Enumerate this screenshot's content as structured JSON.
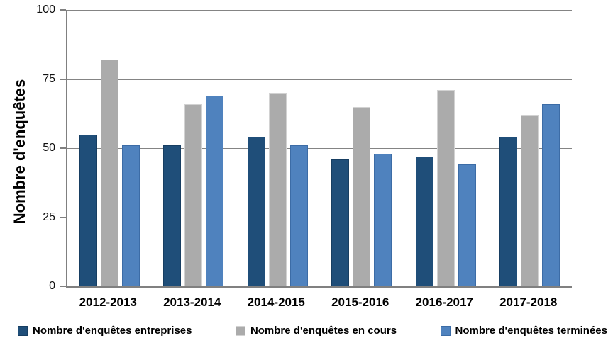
{
  "chart_data": {
    "type": "bar",
    "title": "",
    "xlabel": "",
    "ylabel": "Nombre d'enquêtes",
    "ylim": [
      0,
      100
    ],
    "yticks": [
      0,
      25,
      50,
      75,
      100
    ],
    "grid": true,
    "legend_position": "bottom",
    "categories": [
      "2012-2013",
      "2013-2014",
      "2014-2015",
      "2015-2016",
      "2016-2017",
      "2017-2018"
    ],
    "series": [
      {
        "name": "Nombre d'enquêtes entreprises",
        "color": "#1F4E79",
        "border_color": "#173E62",
        "values": [
          55,
          51,
          54,
          46,
          47,
          54
        ]
      },
      {
        "name": "Nombre d'enquêtes en cours",
        "color": "#ABABAB",
        "border_color": "#D2D2D2",
        "values": [
          82,
          66,
          70,
          65,
          71,
          62
        ]
      },
      {
        "name": "Nombre d'enquêtes terminées",
        "color": "#4F82BE",
        "border_color": "#3C6CA6",
        "values": [
          51,
          69,
          51,
          48,
          44,
          66
        ]
      }
    ],
    "colors": {
      "gridline": "#848484",
      "axis": "#808080",
      "text": "#000000",
      "background": "#FFFFFF"
    }
  }
}
